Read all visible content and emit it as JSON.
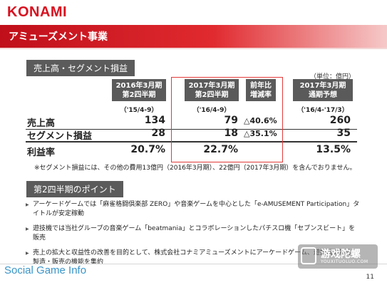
{
  "logo": "KONAMI",
  "title": "アミューズメント事業",
  "section1": {
    "label": "売上高・セグメント損益",
    "unit": "（単位：億円）"
  },
  "table": {
    "col1_header": [
      "2016年3月期",
      "第2四半期"
    ],
    "col2_header": [
      "2017年3月期",
      "第2四半期"
    ],
    "col3_header": [
      "前年比",
      "増減率"
    ],
    "col4_header": [
      "2017年3月期",
      "通期予想"
    ],
    "periods": [
      "（'15/4-9）",
      "（'16/4-9）",
      "（'16/4-'17/3）"
    ],
    "rows": [
      {
        "label": "売上高",
        "v1": "134",
        "v2": "79",
        "change": "△40.6%",
        "v4": "260"
      },
      {
        "label": "セグメント損益",
        "v1": "28",
        "v2": "18",
        "change": "△35.1%",
        "v4": "35"
      },
      {
        "label": "利益率",
        "v1": "20.7%",
        "v2": "22.7%",
        "change": "",
        "v4": "13.5%"
      }
    ]
  },
  "note": "※セグメント損益には、その他の費用13億円（2016年3月期）、22億円（2017年3月期）を含んでおりません。",
  "section2": {
    "label": "第2四半期のポイント"
  },
  "bullets": [
    "アーケードゲームでは「麻雀格闘倶楽部 ZERO」や音楽ゲームを中心とした「e-AMUSEMENT Participation」タイトルが安定稼動",
    "遊技機では当社グループの音楽ゲーム「beatmania」とコラボレーションしたパチスロ機「セブンスビート」を販売",
    "売上の拡大と収益性の改善を目的として、株式会社コナミアミューズメントにアーケードゲーム、遊技機の制作・製造・販売の機能を集約"
  ],
  "footer": {
    "brand": "Social Game Info",
    "page": "11"
  },
  "watermark": {
    "text": "游戏陀螺",
    "sub": "YOUXITUOLUO.COM"
  },
  "colors": {
    "brand_red": "#d8101f",
    "header_gray": "#5a5a5a",
    "highlight_box": "#e23a3a",
    "footer_blue": "#3a95c9"
  }
}
